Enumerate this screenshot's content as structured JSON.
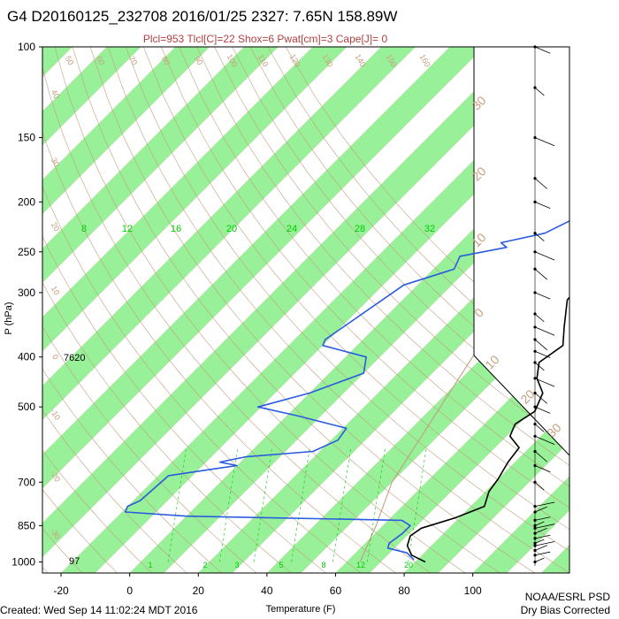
{
  "header": {
    "title": "G4 D20160125_232708 2016/01/25 2327:  7.65N 158.89W",
    "subtitle": "Plcl=953 Tlcl[C]=22 Shox=6 Pwat[cm]=3 Cape[J]= 0"
  },
  "footer": {
    "created": "Created: Wed Sep 14 11:02:24 MDT 2016",
    "credit1": "NOAA/ESRL PSD",
    "credit2": "Dry Bias Corrected"
  },
  "colors": {
    "band": "#98f098",
    "temperature": "#000000",
    "dewpoint": "#2a5be0",
    "isotherm_label": "#c8a080",
    "mixing_ratio": "#00cc00",
    "adiabat": "#c0a080"
  },
  "chart_data": {
    "type": "skew-t",
    "xlabel": "Temperature (F)",
    "ylabel": "P (hPa)",
    "x_ticks": [
      "-20",
      "0",
      "20",
      "40",
      "60",
      "80",
      "100"
    ],
    "y_ticks": [
      "100",
      "150",
      "200",
      "250",
      "300",
      "400",
      "500",
      "700",
      "850",
      "1000"
    ],
    "x_range_F": [
      -28,
      110
    ],
    "p_range_hPa": [
      1050,
      100
    ],
    "isotherm_labels_F": [
      "50",
      "60",
      "70",
      "80",
      "90",
      "100",
      "110",
      "120",
      "130",
      "140",
      "150",
      "160",
      "40",
      "30",
      "20",
      "10",
      "0",
      "-10",
      "-20",
      "-30",
      "-40"
    ],
    "isotherm_labels_C": [
      "30",
      "20",
      "10",
      "0",
      "10",
      "20",
      "30"
    ],
    "mixing_ratio_labels_top": [
      "8",
      "12",
      "16",
      "20",
      "24",
      "28",
      "32"
    ],
    "mixing_ratio_labels_bottom": [
      "1",
      "2",
      "3",
      "5",
      "8",
      "12",
      "20"
    ],
    "annotations": {
      "height_400": "7620",
      "height_1000": "97"
    },
    "temperature_profile": [
      {
        "p": 1000,
        "t": 83
      },
      {
        "p": 970,
        "t": 77
      },
      {
        "p": 930,
        "t": 73
      },
      {
        "p": 890,
        "t": 71
      },
      {
        "p": 860,
        "t": 72
      },
      {
        "p": 820,
        "t": 79
      },
      {
        "p": 780,
        "t": 84
      },
      {
        "p": 730,
        "t": 81
      },
      {
        "p": 690,
        "t": 80
      },
      {
        "p": 640,
        "t": 78
      },
      {
        "p": 600,
        "t": 77
      },
      {
        "p": 570,
        "t": 71
      },
      {
        "p": 540,
        "t": 69
      },
      {
        "p": 510,
        "t": 71
      },
      {
        "p": 470,
        "t": 68
      },
      {
        "p": 440,
        "t": 62
      },
      {
        "p": 410,
        "t": 58
      },
      {
        "p": 380,
        "t": 60
      },
      {
        "p": 350,
        "t": 55
      },
      {
        "p": 310,
        "t": 48
      },
      {
        "p": 280,
        "t": 47
      },
      {
        "p": 250,
        "t": 45
      },
      {
        "p": 230,
        "t": 43
      },
      {
        "p": 210,
        "t": 40
      },
      {
        "p": 190,
        "t": 38
      }
    ],
    "dewpoint_profile": [
      {
        "p": 990,
        "t": 79
      },
      {
        "p": 960,
        "t": 75
      },
      {
        "p": 940,
        "t": 68
      },
      {
        "p": 920,
        "t": 67
      },
      {
        "p": 880,
        "t": 68
      },
      {
        "p": 850,
        "t": 68
      },
      {
        "p": 830,
        "t": 64
      },
      {
        "p": 815,
        "t": 0
      },
      {
        "p": 800,
        "t": -19
      },
      {
        "p": 780,
        "t": -20
      },
      {
        "p": 760,
        "t": -18
      },
      {
        "p": 680,
        "t": -17
      },
      {
        "p": 660,
        "t": -6
      },
      {
        "p": 650,
        "t": 0
      },
      {
        "p": 640,
        "t": -6
      },
      {
        "p": 625,
        "t": 0
      },
      {
        "p": 610,
        "t": 18
      },
      {
        "p": 580,
        "t": 22
      },
      {
        "p": 550,
        "t": 21
      },
      {
        "p": 520,
        "t": 3
      },
      {
        "p": 500,
        "t": -11
      },
      {
        "p": 470,
        "t": 0
      },
      {
        "p": 430,
        "t": 10
      },
      {
        "p": 400,
        "t": 6
      },
      {
        "p": 380,
        "t": -10
      },
      {
        "p": 370,
        "t": -11
      },
      {
        "p": 290,
        "t": -4
      },
      {
        "p": 270,
        "t": 6
      },
      {
        "p": 255,
        "t": 4
      },
      {
        "p": 245,
        "t": 15
      },
      {
        "p": 240,
        "t": 12
      },
      {
        "p": 230,
        "t": 22
      },
      {
        "p": 210,
        "t": 28
      }
    ],
    "wind_levels_hPa": [
      1000,
      970,
      950,
      930,
      920,
      900,
      880,
      860,
      850,
      830,
      800,
      780,
      700,
      650,
      610,
      570,
      540,
      500,
      470,
      440,
      410,
      390,
      370,
      350,
      330,
      300,
      270,
      250,
      230,
      200,
      180,
      150,
      120,
      100
    ]
  }
}
